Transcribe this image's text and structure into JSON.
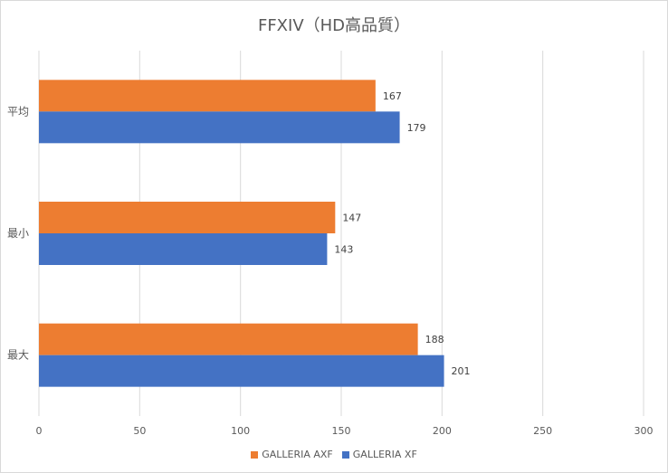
{
  "chart_data": {
    "type": "bar",
    "orientation": "horizontal",
    "title": "FFXIV（HD高品質）",
    "categories": [
      "平均",
      "最小",
      "最大"
    ],
    "series": [
      {
        "name": "GALLERIA AXF",
        "color": "#ED7D31",
        "values": [
          167,
          147,
          188
        ]
      },
      {
        "name": "GALLERIA XF",
        "color": "#4472C4",
        "values": [
          179,
          143,
          201
        ]
      }
    ],
    "xlim": [
      0,
      300
    ],
    "xticks": [
      0,
      50,
      100,
      150,
      200,
      250,
      300
    ],
    "grid": true,
    "legend_position": "bottom",
    "data_labels": true
  }
}
